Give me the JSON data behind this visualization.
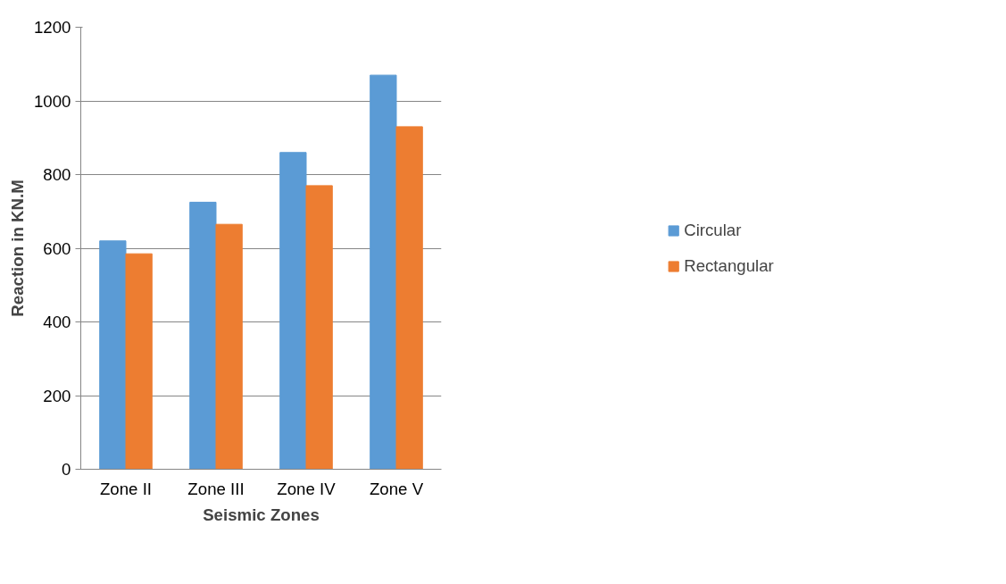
{
  "chart_data": {
    "type": "bar",
    "xlabel": "Seismic Zones",
    "ylabel": "Reaction in KN.M",
    "categories": [
      "Zone II",
      "Zone III",
      "Zone IV",
      "Zone V"
    ],
    "series": [
      {
        "name": "Circular",
        "color": "#5b9bd5",
        "values": [
          620,
          725,
          860,
          1070
        ]
      },
      {
        "name": "Rectangular",
        "color": "#ed7d31",
        "values": [
          585,
          665,
          770,
          930
        ]
      }
    ],
    "ylim": [
      0,
      1200
    ],
    "yticks": [
      0,
      200,
      400,
      600,
      800,
      1000,
      1200
    ],
    "grid": "y",
    "legend": "right"
  }
}
